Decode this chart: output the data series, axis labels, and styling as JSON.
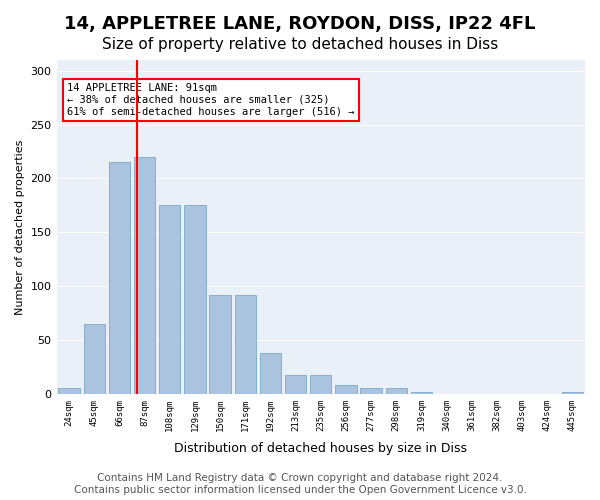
{
  "title1": "14, APPLETREE LANE, ROYDON, DISS, IP22 4FL",
  "title2": "Size of property relative to detached houses in Diss",
  "xlabel": "Distribution of detached houses by size in Diss",
  "ylabel": "Number of detached properties",
  "bin_labels": [
    "24sqm",
    "45sqm",
    "66sqm",
    "87sqm",
    "108sqm",
    "129sqm",
    "150sqm",
    "171sqm",
    "192sqm",
    "213sqm",
    "235sqm",
    "256sqm",
    "277sqm",
    "298sqm",
    "319sqm",
    "340sqm",
    "361sqm",
    "382sqm",
    "403sqm",
    "424sqm",
    "445sqm"
  ],
  "bar_values": [
    5,
    65,
    215,
    220,
    175,
    175,
    92,
    92,
    38,
    17,
    17,
    8,
    5,
    5,
    2,
    0,
    0,
    0,
    0,
    0,
    2
  ],
  "bar_color": "#aac4e0",
  "bar_edge_color": "#6a9fc0",
  "property_sqm": 91,
  "annotation_text": "14 APPLETREE LANE: 91sqm\n← 38% of detached houses are smaller (325)\n61% of semi-detached houses are larger (516) →",
  "annotation_box_color": "white",
  "annotation_box_edge": "red",
  "vline_color": "red",
  "ylim": [
    0,
    310
  ],
  "yticks": [
    0,
    50,
    100,
    150,
    200,
    250,
    300
  ],
  "background_color": "#eaf0f8",
  "footer": "Contains HM Land Registry data © Crown copyright and database right 2024.\nContains public sector information licensed under the Open Government Licence v3.0.",
  "title_fontsize": 13,
  "subtitle_fontsize": 11,
  "footer_fontsize": 7.5
}
